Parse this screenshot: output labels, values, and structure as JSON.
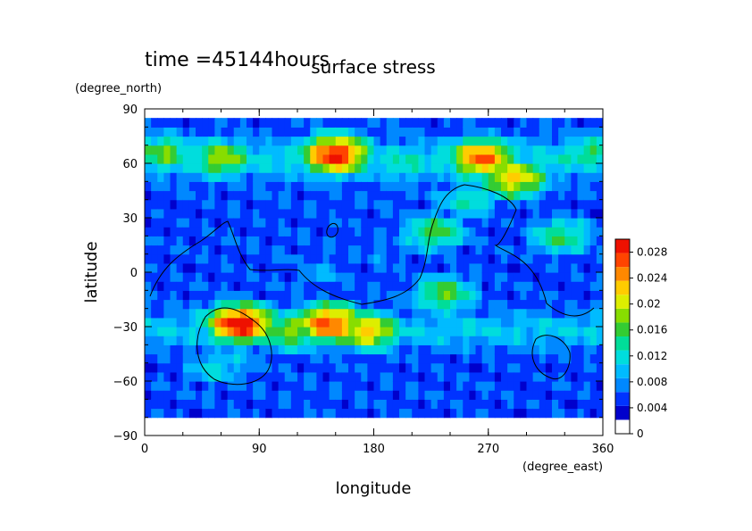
{
  "chart_data": {
    "type": "heatmap",
    "title": "surface stress",
    "time_label": "time =45144hours",
    "xlabel": "longitude",
    "ylabel": "latitude",
    "x_units": "(degree_east)",
    "y_units": "(degree_north)",
    "xlim": [
      0,
      360
    ],
    "ylim": [
      -90,
      90
    ],
    "x_ticks": [
      0,
      90,
      180,
      270,
      360
    ],
    "y_ticks": [
      -90,
      -60,
      -30,
      0,
      30,
      60,
      90
    ],
    "colorbar": {
      "min": 0,
      "max": 0.03,
      "tick_values": [
        0,
        0.004,
        0.008,
        0.012,
        0.016,
        0.02,
        0.024,
        0.028
      ],
      "tick_labels": [
        "0",
        "0.004",
        "0.008",
        "0.012",
        "0.016",
        "0.02",
        "0.024",
        "0.028"
      ],
      "colors": [
        "#ffffff",
        "#0000cc",
        "#0033ff",
        "#0088ff",
        "#00bbff",
        "#00dddd",
        "#00dd99",
        "#33cc33",
        "#88dd00",
        "#ddee00",
        "#ffcc00",
        "#ff8800",
        "#ff4400",
        "#ee1100"
      ]
    },
    "field_features": [
      {
        "lon": 150,
        "lat": 65,
        "value": 0.029
      },
      {
        "lon": 265,
        "lat": 63,
        "value": 0.026
      },
      {
        "lon": 290,
        "lat": 52,
        "value": 0.022
      },
      {
        "lon": 60,
        "lat": 63,
        "value": 0.018
      },
      {
        "lon": 15,
        "lat": 66,
        "value": 0.016
      },
      {
        "lon": 350,
        "lat": 66,
        "value": 0.014
      },
      {
        "lon": 205,
        "lat": 60,
        "value": 0.012
      },
      {
        "lon": 75,
        "lat": -28,
        "value": 0.03
      },
      {
        "lon": 145,
        "lat": -28,
        "value": 0.027
      },
      {
        "lon": 175,
        "lat": -32,
        "value": 0.022
      },
      {
        "lon": 115,
        "lat": -32,
        "value": 0.018
      },
      {
        "lon": 235,
        "lat": -12,
        "value": 0.016
      },
      {
        "lon": 255,
        "lat": 40,
        "value": 0.012
      },
      {
        "lon": 228,
        "lat": 22,
        "value": 0.015
      },
      {
        "lon": 328,
        "lat": 20,
        "value": 0.014
      },
      {
        "lon": 55,
        "lat": -52,
        "value": 0.01
      },
      {
        "lon": 190,
        "lat": 10,
        "value": 0.006
      },
      {
        "lon": 140,
        "lat": 0,
        "value": 0.007
      },
      {
        "lon": 110,
        "lat": 5,
        "value": 0.005
      },
      {
        "lon": 70,
        "lat": -50,
        "value": 0.008
      }
    ]
  }
}
